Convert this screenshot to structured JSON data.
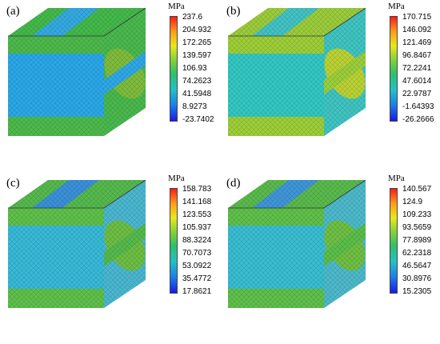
{
  "panels": [
    {
      "label": "(a)",
      "unit": "MPa",
      "ticks": [
        "237.6",
        "204.932",
        "172.265",
        "139.597",
        "106.93",
        "74.2623",
        "41.5948",
        "8.9273",
        "-23.7402"
      ],
      "colors": {
        "front": "#2aa7e6",
        "frontBand": "#4db84b",
        "side": "#49b74d",
        "sideBand": "#2fa7e4",
        "top": "#43b84a",
        "topBand": "#34a8e0",
        "ellipse": "#7dbb3d"
      }
    },
    {
      "label": "(b)",
      "unit": "MPa",
      "ticks": [
        "170.715",
        "146.092",
        "121.469",
        "96.8467",
        "72.2241",
        "47.6014",
        "22.9787",
        "-1.64393",
        "-26.2666"
      ],
      "colors": {
        "front": "#33c6c2",
        "frontBand": "#9ccd38",
        "side": "#3fc3c0",
        "sideBand": "#9bcd3a",
        "top": "#9acb3b",
        "topBand": "#42c1c3",
        "ellipse": "#b9d134"
      }
    },
    {
      "label": "(c)",
      "unit": "MPa",
      "ticks": [
        "158.783",
        "141.168",
        "123.553",
        "105.937",
        "88.3224",
        "70.7073",
        "53.0922",
        "35.4772",
        "17.8621"
      ],
      "colors": {
        "front": "#37b8d6",
        "frontBand": "#5ebf4a",
        "side": "#4ab6cf",
        "sideBand": "#54b94b",
        "top": "#55b84d",
        "topBand": "#3a8fd8",
        "ellipse": "#6cbd44"
      }
    },
    {
      "label": "(d)",
      "unit": "MPa",
      "ticks": [
        "140.567",
        "124.9",
        "109.233",
        "93.5659",
        "77.8989",
        "62.2318",
        "46.5647",
        "30.8976",
        "15.2305"
      ],
      "colors": {
        "front": "#39bcd0",
        "frontBand": "#5fbf4a",
        "side": "#4cb8c9",
        "sideBand": "#5abd49",
        "top": "#59b94c",
        "topBand": "#3f95d6",
        "ellipse": "#6ebe44"
      }
    }
  ]
}
